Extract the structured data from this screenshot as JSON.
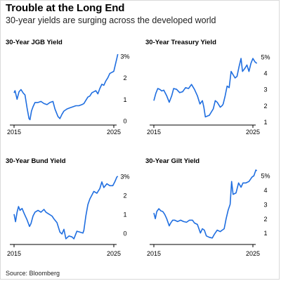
{
  "header": {
    "title": "Trouble at the Long End",
    "subtitle": "30-year yields are surging across the developed world"
  },
  "footer": {
    "source": "Source: Bloomberg"
  },
  "colors": {
    "line": "#1f6ee0",
    "axis": "#000000",
    "text": "#000000"
  },
  "chart_data": [
    {
      "type": "line",
      "title": "30-Year JGB Yield",
      "x_ticks": [
        "2015",
        "2025"
      ],
      "x_range": [
        2015,
        2025
      ],
      "y_ticks": [
        "0",
        "1",
        "2",
        "3%"
      ],
      "ylim": [
        -0.2,
        3.2
      ],
      "series": [
        {
          "x": [
            2015.0,
            2015.1,
            2015.3,
            2015.5,
            2015.7,
            2015.9,
            2016.1,
            2016.3,
            2016.5,
            2016.6,
            2016.75,
            2016.9,
            2017.1,
            2017.4,
            2017.7,
            2018.0,
            2018.3,
            2018.6,
            2018.9,
            2019.1,
            2019.4,
            2019.6,
            2019.8,
            2020.0,
            2020.3,
            2020.6,
            2020.9,
            2021.2,
            2021.5,
            2021.8,
            2022.0,
            2022.2,
            2022.4,
            2022.6,
            2022.8,
            2023.0,
            2023.2,
            2023.4,
            2023.6,
            2023.8,
            2024.0,
            2024.2,
            2024.4,
            2024.6,
            2024.8,
            2025.0,
            2025.1,
            2025.3,
            2025.4
          ],
          "values": [
            1.3,
            1.4,
            1.0,
            1.35,
            1.45,
            1.3,
            1.2,
            0.6,
            0.1,
            0.05,
            0.45,
            0.65,
            0.85,
            0.85,
            0.9,
            0.8,
            0.75,
            0.85,
            0.9,
            0.55,
            0.2,
            0.1,
            0.3,
            0.45,
            0.55,
            0.6,
            0.65,
            0.7,
            0.7,
            0.75,
            0.8,
            0.95,
            1.1,
            1.15,
            1.3,
            1.35,
            1.4,
            1.25,
            1.5,
            1.7,
            1.65,
            1.85,
            2.0,
            2.2,
            2.25,
            2.3,
            2.5,
            2.9,
            3.1
          ]
        }
      ]
    },
    {
      "type": "line",
      "title": "30-Year Treasury Yield",
      "x_ticks": [
        "2015",
        "2025"
      ],
      "x_range": [
        2015,
        2025
      ],
      "y_ticks": [
        "1",
        "2",
        "3",
        "4",
        "5%"
      ],
      "ylim": [
        0.8,
        5.3
      ],
      "series": [
        {
          "x": [
            2015.0,
            2015.2,
            2015.4,
            2015.6,
            2015.8,
            2016.0,
            2016.3,
            2016.55,
            2016.8,
            2017.0,
            2017.3,
            2017.6,
            2017.9,
            2018.2,
            2018.5,
            2018.8,
            2019.1,
            2019.4,
            2019.65,
            2019.9,
            2020.05,
            2020.2,
            2020.4,
            2020.6,
            2020.8,
            2021.0,
            2021.2,
            2021.4,
            2021.7,
            2021.9,
            2022.0,
            2022.2,
            2022.4,
            2022.6,
            2022.8,
            2023.0,
            2023.2,
            2023.4,
            2023.6,
            2023.8,
            2023.95,
            2024.2,
            2024.4,
            2024.6,
            2024.8,
            2025.0,
            2025.2,
            2025.4
          ],
          "values": [
            2.3,
            2.75,
            3.05,
            3.0,
            2.9,
            2.95,
            2.6,
            2.2,
            2.6,
            3.05,
            3.0,
            2.8,
            2.85,
            3.1,
            3.05,
            3.3,
            3.0,
            2.6,
            2.1,
            2.3,
            1.9,
            1.3,
            1.35,
            1.4,
            1.6,
            1.8,
            2.3,
            2.2,
            1.9,
            2.0,
            2.1,
            2.6,
            3.2,
            3.1,
            4.1,
            3.9,
            3.7,
            3.8,
            4.4,
            4.9,
            4.1,
            4.3,
            4.5,
            4.1,
            4.6,
            4.9,
            4.7,
            4.6
          ]
        }
      ]
    },
    {
      "type": "line",
      "title": "30-Year Bund Yield",
      "x_ticks": [
        "2015",
        "2025"
      ],
      "x_range": [
        2015,
        2025
      ],
      "y_ticks": [
        "0",
        "1",
        "2",
        "3%"
      ],
      "ylim": [
        -0.6,
        3.4
      ],
      "series": [
        {
          "x": [
            2015.0,
            2015.15,
            2015.3,
            2015.45,
            2015.6,
            2015.8,
            2016.0,
            2016.3,
            2016.55,
            2016.7,
            2016.9,
            2017.1,
            2017.4,
            2017.7,
            2018.0,
            2018.2,
            2018.5,
            2018.8,
            2019.0,
            2019.3,
            2019.6,
            2019.8,
            2020.0,
            2020.2,
            2020.5,
            2020.8,
            2021.0,
            2021.3,
            2021.6,
            2021.9,
            2022.0,
            2022.2,
            2022.4,
            2022.6,
            2022.8,
            2023.0,
            2023.3,
            2023.6,
            2023.8,
            2024.0,
            2024.3,
            2024.6,
            2024.9,
            2025.1,
            2025.3,
            2025.4
          ],
          "values": [
            1.0,
            0.6,
            1.1,
            1.4,
            1.2,
            1.3,
            1.05,
            0.7,
            0.35,
            0.5,
            0.9,
            1.1,
            1.2,
            1.1,
            1.25,
            1.1,
            1.0,
            0.9,
            0.75,
            0.55,
            0.05,
            -0.05,
            0.2,
            -0.3,
            -0.15,
            -0.2,
            -0.3,
            0.1,
            0.05,
            0.0,
            0.15,
            0.9,
            1.5,
            1.8,
            2.0,
            2.2,
            2.1,
            2.35,
            2.7,
            2.4,
            2.6,
            2.5,
            2.5,
            2.7,
            2.95,
            3.0
          ]
        }
      ]
    },
    {
      "type": "line",
      "title": "30-Year Gilt Yield",
      "x_ticks": [
        "2015",
        "2025"
      ],
      "x_range": [
        2015,
        2025
      ],
      "y_ticks": [
        "1",
        "2",
        "3",
        "4",
        "5%"
      ],
      "ylim": [
        0.2,
        5.5
      ],
      "series": [
        {
          "x": [
            2015.0,
            2015.15,
            2015.3,
            2015.5,
            2015.7,
            2015.9,
            2016.1,
            2016.3,
            2016.55,
            2016.7,
            2016.9,
            2017.1,
            2017.4,
            2017.7,
            2018.0,
            2018.3,
            2018.6,
            2018.9,
            2019.1,
            2019.4,
            2019.7,
            2019.9,
            2020.1,
            2020.3,
            2020.6,
            2020.9,
            2021.1,
            2021.4,
            2021.7,
            2021.9,
            2022.1,
            2022.3,
            2022.5,
            2022.7,
            2022.85,
            2023.0,
            2023.3,
            2023.55,
            2023.8,
            2024.0,
            2024.3,
            2024.6,
            2024.9,
            2025.1,
            2025.3,
            2025.4
          ],
          "values": [
            2.4,
            2.0,
            2.5,
            2.7,
            2.55,
            2.5,
            2.3,
            2.0,
            1.5,
            1.7,
            1.9,
            1.9,
            1.8,
            1.9,
            1.8,
            1.75,
            1.9,
            1.9,
            1.7,
            1.6,
            1.0,
            1.3,
            1.2,
            0.8,
            0.7,
            0.65,
            0.9,
            1.2,
            1.1,
            1.2,
            1.3,
            2.0,
            2.6,
            3.0,
            4.6,
            3.7,
            3.8,
            4.5,
            4.2,
            4.5,
            4.5,
            4.6,
            4.9,
            5.0,
            5.4,
            5.35
          ]
        }
      ]
    }
  ]
}
